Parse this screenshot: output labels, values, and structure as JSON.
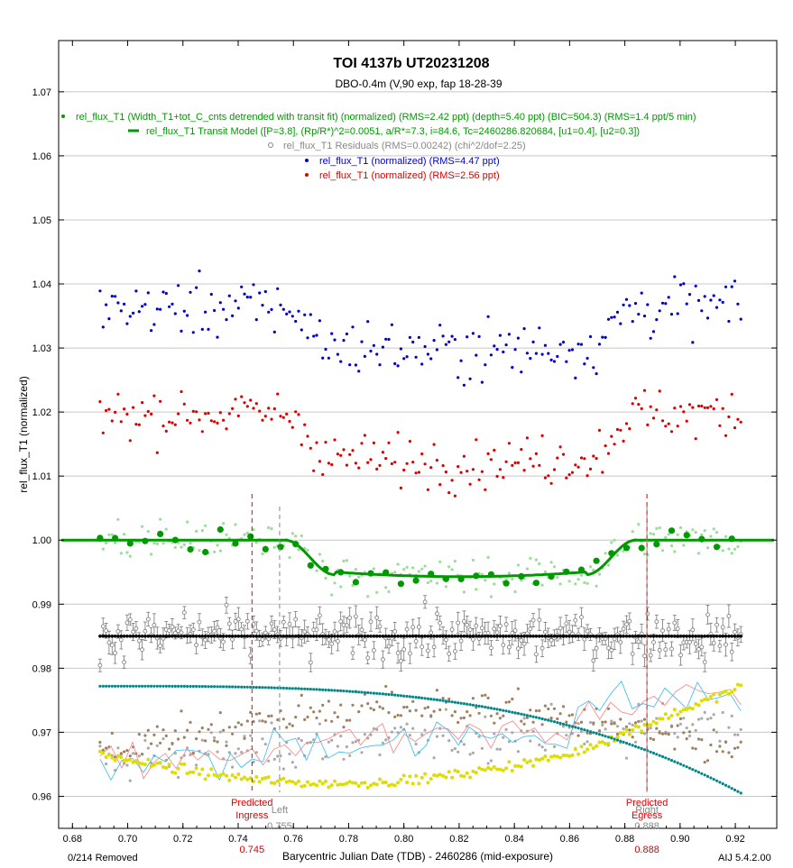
{
  "chart_data": {
    "type": "scatter",
    "title": "TOI 4137b UT20231208",
    "subtitle": "DBO-0.4m (V,90 exp, fap 18-28-39",
    "xlabel": "Barycentric Julian Date (TDB) - 2460286 (mid-exposure)",
    "ylabel": "rel_flux_T1 (normalized)",
    "xlim": [
      0.675,
      0.935
    ],
    "ylim": [
      0.955,
      1.078
    ],
    "x_ticks": [
      "0.68",
      "0.70",
      "0.72",
      "0.74",
      "0.76",
      "0.78",
      "0.80",
      "0.82",
      "0.84",
      "0.86",
      "0.88",
      "0.90",
      "0.92"
    ],
    "y_ticks": [
      "0.96",
      "0.97",
      "0.98",
      "0.99",
      "1.00",
      "1.01",
      "1.02",
      "1.03",
      "1.04",
      "1.05",
      "1.06",
      "1.07"
    ],
    "grid": "horizontal",
    "legend": [
      {
        "text": "rel_flux_T1 (Width_T1+tot_C_cnts detrended with transit fit) (normalized) (RMS=2.42 ppt) (depth=5.40 ppt) (BIC=504.3) (RMS=1.4 ppt/5 min)",
        "color": "#009900",
        "symbol": "dot"
      },
      {
        "text": "rel_flux_T1 Transit Model ([P=3.8], (Rp/R*)^2=0.0051, a/R*=7.3, i=84.6, Tc=2460286.820684, [u1=0.4], [u2=0.3])",
        "color": "#009900",
        "symbol": "line"
      },
      {
        "text": "rel_flux_T1 Residuals (RMS=0.00242) (chi^2/dof=2.25)",
        "color": "#888888",
        "symbol": "circle"
      },
      {
        "text": "rel_flux_T1 (normalized) (RMS=4.47 ppt)",
        "color": "#0000cc",
        "symbol": "dot"
      },
      {
        "text": "rel_flux_T1 (normalized) (RMS=2.56 ppt)",
        "color": "#dd0000",
        "symbol": "dot"
      }
    ],
    "x_start": 0.69,
    "x_end": 0.922,
    "n_points": 214,
    "series": [
      {
        "key": "blue",
        "color": "#0000cc",
        "baseline": 1.0363,
        "depth": 0.0063,
        "noise": 0.0035
      },
      {
        "key": "red",
        "color": "#dd0000",
        "baseline": 1.0197,
        "depth": 0.0072,
        "noise": 0.003
      },
      {
        "key": "green_raw",
        "color": "#99dd99",
        "baseline": 1.0,
        "depth": 0.0054,
        "noise": 0.0023
      },
      {
        "key": "green_binned",
        "color": "#009900",
        "baseline": 1.0,
        "depth": 0.0054,
        "noise": 0.0012
      },
      {
        "key": "residuals",
        "color": "#888888",
        "baseline": 0.985,
        "depth": 0,
        "noise": 0.0024
      },
      {
        "key": "gray_aux",
        "color": "#aaaaaa",
        "baseline": 0.9655,
        "depth": 0,
        "noise": 0.0025
      },
      {
        "key": "brown_aux",
        "color": "#a08060",
        "baseline": 0.9675,
        "depth": 0,
        "noise": 0.002
      },
      {
        "key": "yellow_aux",
        "color": "#dddd00",
        "baseline": 0.9645,
        "depth": 0,
        "noise": 0.0005
      }
    ],
    "model": {
      "Tc": 0.820684,
      "t_ingress": 0.757,
      "t_full_in": 0.775,
      "t_full_out": 0.866,
      "t_egress": 0.884,
      "depth": 0.0054,
      "baseline": 1.0
    },
    "teal_curve": {
      "color": "#008888",
      "y_start": 0.9772,
      "y_end": 0.9605
    },
    "markers": [
      {
        "label1": "Predicted",
        "label2": "Ingress",
        "value": "0.745",
        "x": 0.745,
        "color": "#dd0000"
      },
      {
        "label1": "Left",
        "label2": "",
        "value": "0.755",
        "x": 0.755,
        "color": "#888888"
      },
      {
        "label1": "Predicted",
        "label2": "Egress",
        "value": "0.888",
        "x": 0.888,
        "color": "#dd0000"
      },
      {
        "label1": "Right",
        "label2": "",
        "value": "0.888",
        "x": 0.888,
        "color": "#888888"
      }
    ]
  },
  "footer": {
    "removed": "0/214 Removed",
    "version": "AIJ 5.4.2.00"
  }
}
